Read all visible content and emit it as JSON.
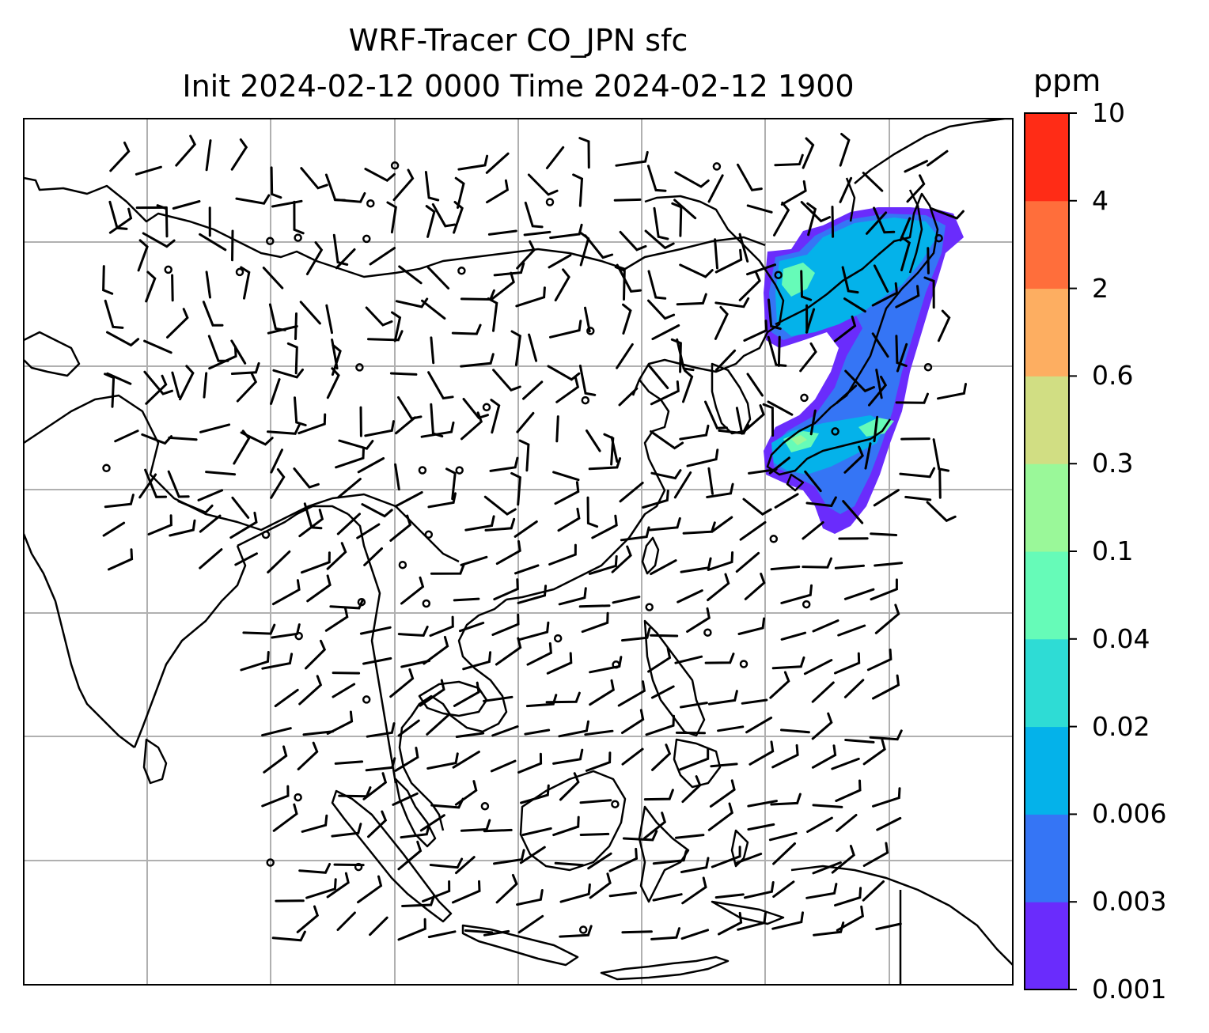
{
  "title": {
    "line1": "WRF-Tracer CO_JPN sfc",
    "line2": "Init 2024-02-12 0000 Time 2024-02-12 1900"
  },
  "colorbar": {
    "unit": "ppm",
    "levels": [
      "0.001",
      "0.003",
      "0.006",
      "0.02",
      "0.04",
      "0.1",
      "0.3",
      "0.6",
      "2",
      "4",
      "10"
    ],
    "colors": [
      "#6a2cfc",
      "#3575f5",
      "#04b2ea",
      "#2edcd5",
      "#66fbb8",
      "#9af899",
      "#d1de83",
      "#fdae61",
      "#ff6e3b",
      "#ff2c16"
    ]
  },
  "map": {
    "gridline_color": "#b0b0b0",
    "coastline_color": "#000000",
    "plume_colors": {
      "low": "#6a2cfc",
      "mid": "#3575f5",
      "high": "#04b2ea",
      "peak": "#66fbb8"
    }
  }
}
